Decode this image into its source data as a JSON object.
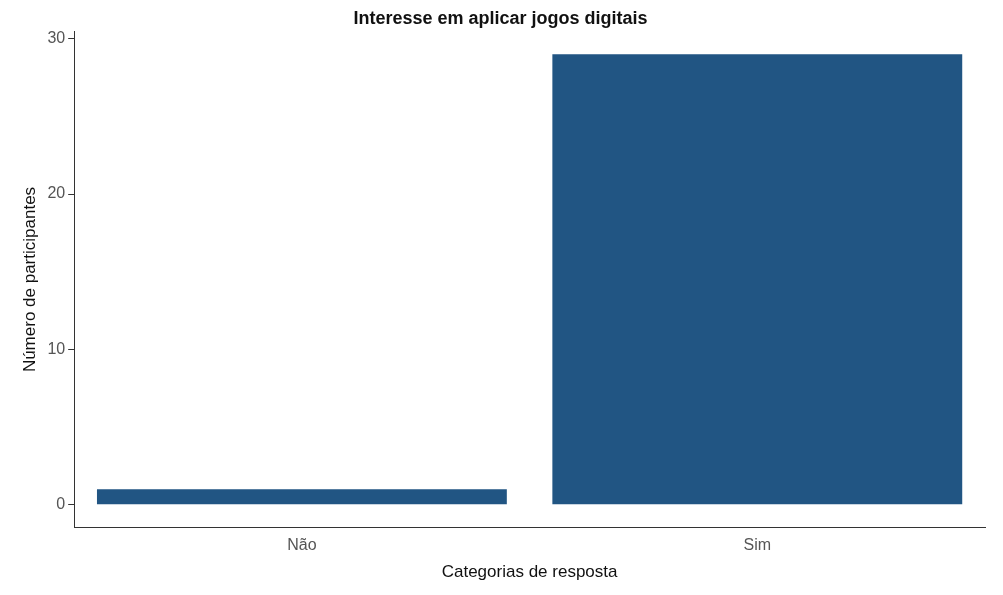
{
  "chart_data": {
    "type": "bar",
    "title": "Interesse em aplicar jogos digitais",
    "xlabel": "Categorias de resposta",
    "ylabel": "Número de participantes",
    "categories": [
      "Não",
      "Sim"
    ],
    "values": [
      1,
      29
    ],
    "color": "#215583",
    "ylim": [
      -1.45,
      30.45
    ],
    "yticks": [
      0,
      10,
      20,
      30
    ],
    "grid": false,
    "legend": false
  }
}
